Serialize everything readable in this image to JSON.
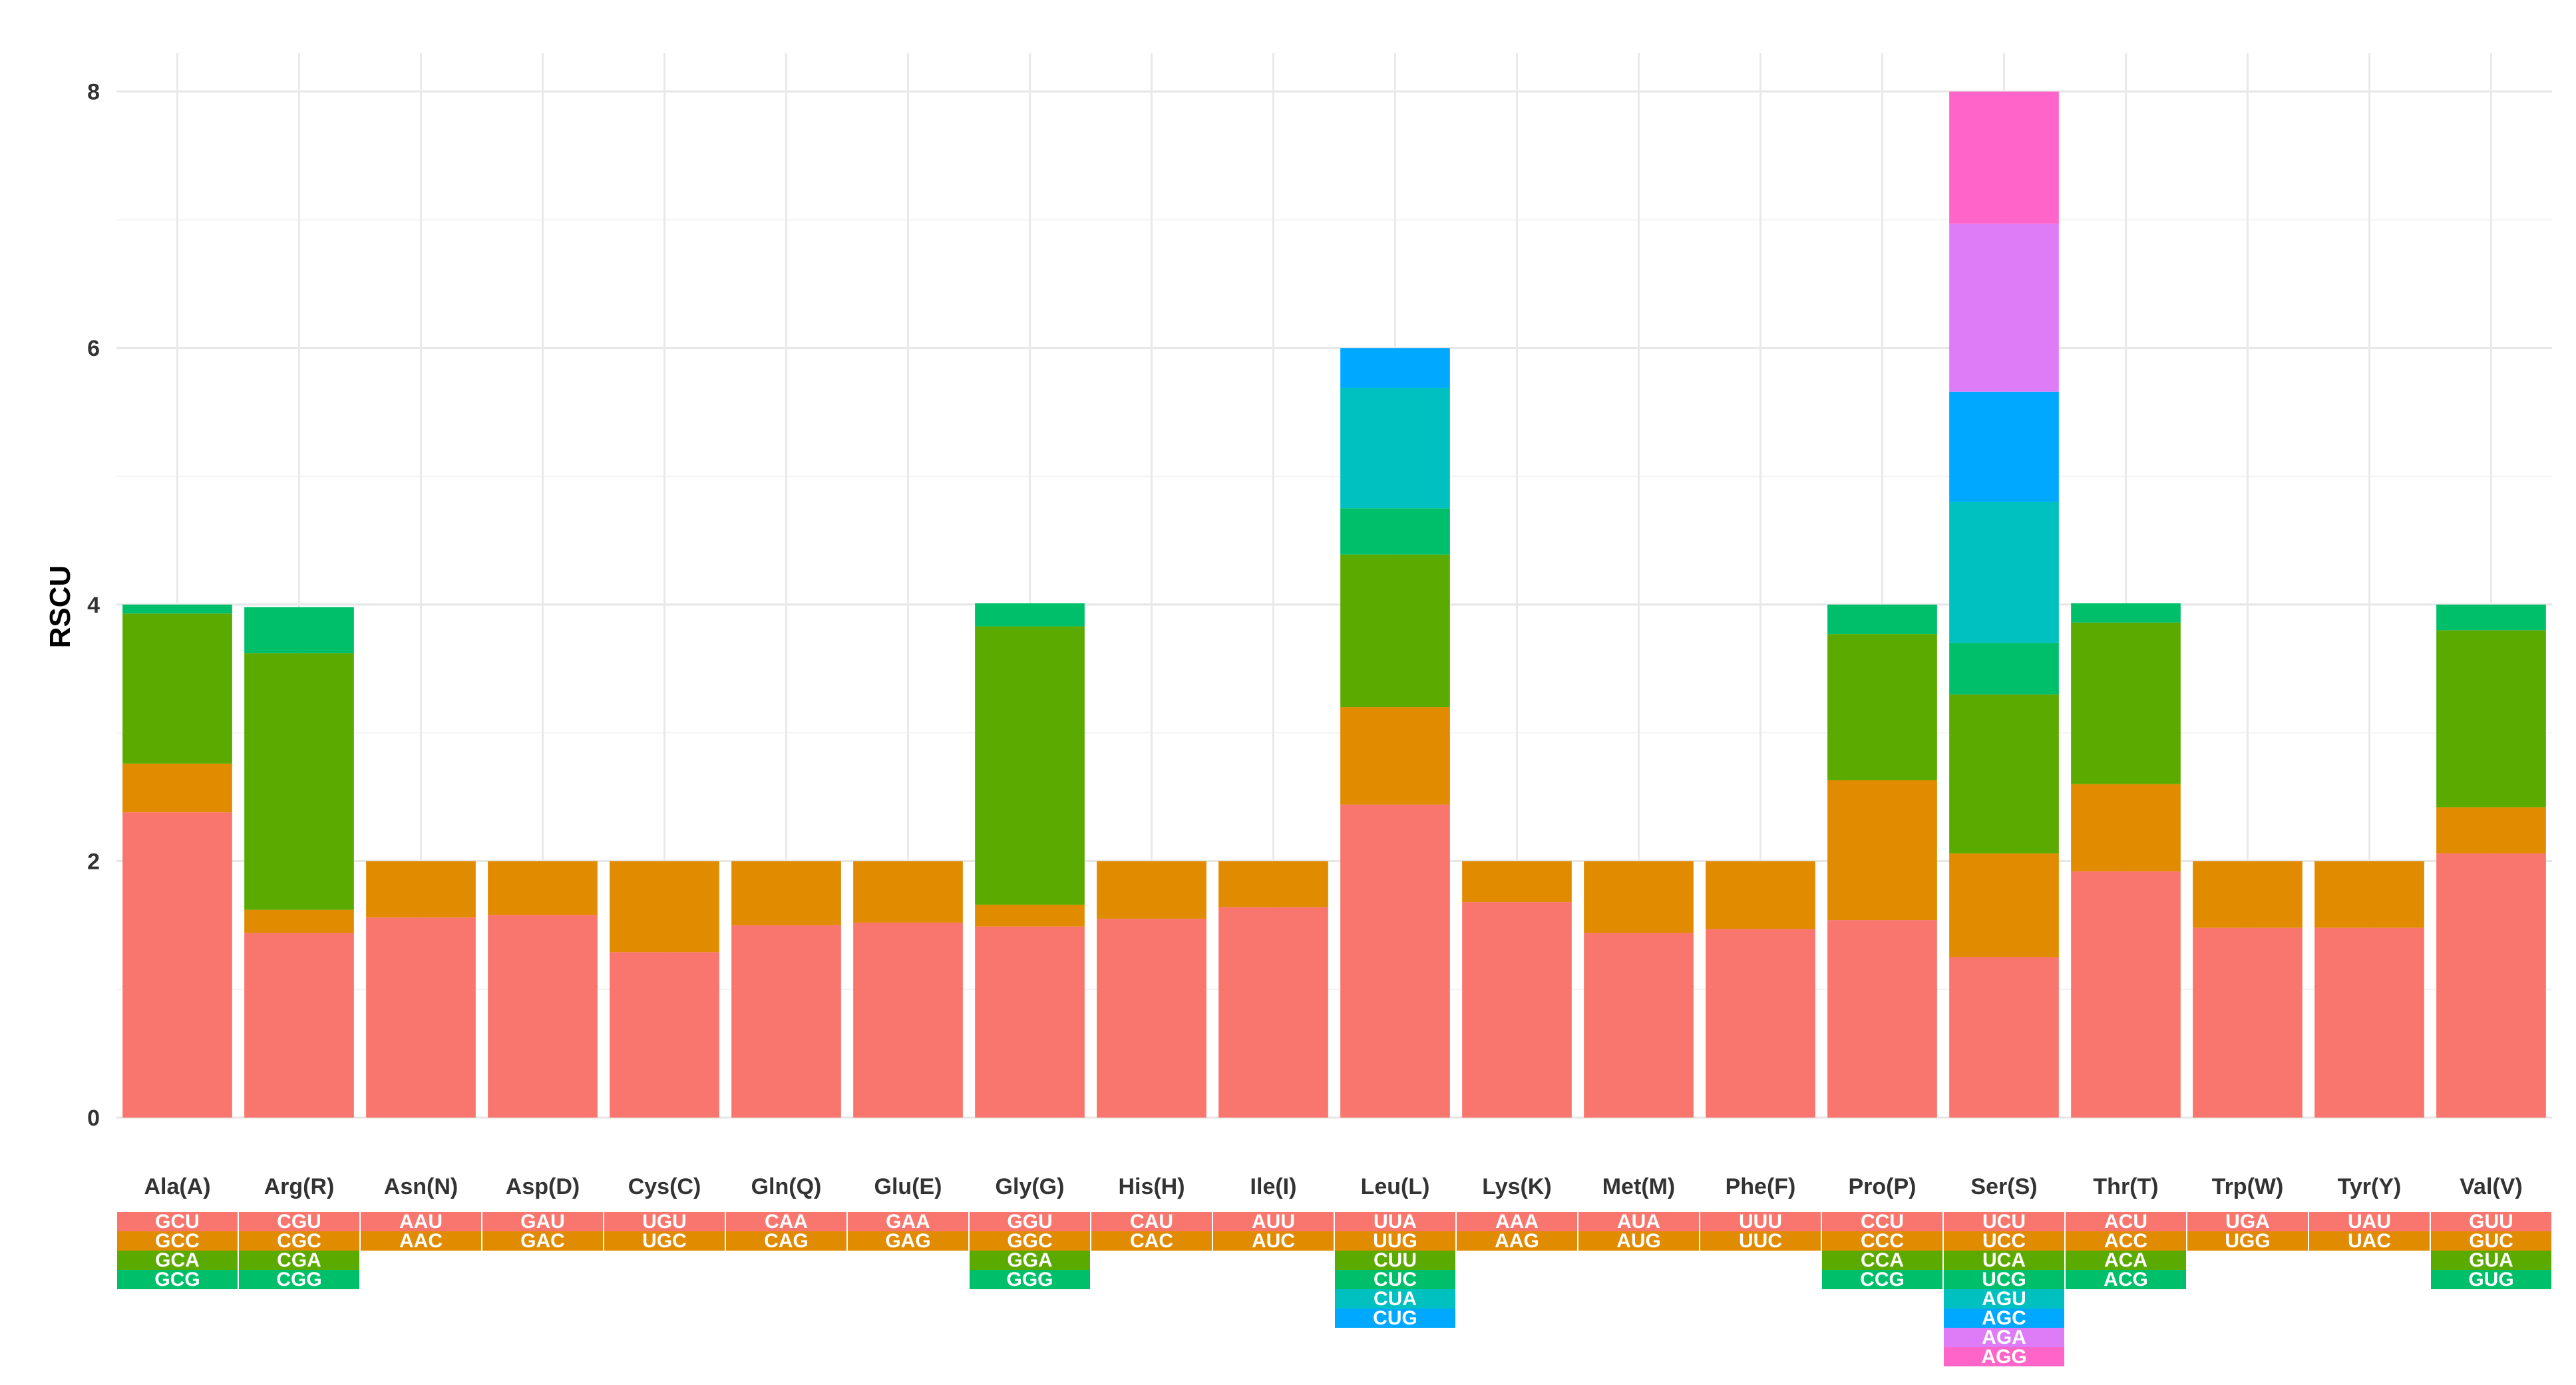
{
  "chart_data": {
    "type": "bar",
    "stacked": true,
    "ylabel": "RSCU",
    "ylim": [
      0,
      8.3
    ],
    "yticks": [
      0,
      2,
      4,
      6,
      8
    ],
    "grid": true,
    "legend": "none",
    "codon_colors": [
      "#F8766D",
      "#E08B00",
      "#5BAA00",
      "#00BF6A",
      "#00C0C0",
      "#00A9FF",
      "#DE7CF7",
      "#FF65C8"
    ],
    "categories": [
      "Ala(A)",
      "Arg(R)",
      "Asn(N)",
      "Asp(D)",
      "Cys(C)",
      "Gln(Q)",
      "Glu(E)",
      "Gly(G)",
      "His(H)",
      "Ile(I)",
      "Leu(L)",
      "Lys(K)",
      "Met(M)",
      "Phe(F)",
      "Pro(P)",
      "Ser(S)",
      "Thr(T)",
      "Trp(W)",
      "Tyr(Y)",
      "Val(V)"
    ],
    "bars": [
      {
        "codons": [
          "GCU",
          "GCC",
          "GCA",
          "GCG"
        ],
        "values": [
          2.38,
          0.38,
          1.17,
          0.07
        ]
      },
      {
        "codons": [
          "CGU",
          "CGC",
          "CGA",
          "CGG"
        ],
        "values": [
          1.44,
          0.18,
          2.0,
          0.36
        ]
      },
      {
        "codons": [
          "AAU",
          "AAC"
        ],
        "values": [
          1.56,
          0.44
        ]
      },
      {
        "codons": [
          "GAU",
          "GAC"
        ],
        "values": [
          1.58,
          0.42
        ]
      },
      {
        "codons": [
          "UGU",
          "UGC"
        ],
        "values": [
          1.29,
          0.71
        ]
      },
      {
        "codons": [
          "CAA",
          "CAG"
        ],
        "values": [
          1.5,
          0.5
        ]
      },
      {
        "codons": [
          "GAA",
          "GAG"
        ],
        "values": [
          1.52,
          0.48
        ]
      },
      {
        "codons": [
          "GGU",
          "GGC",
          "GGA",
          "GGG"
        ],
        "values": [
          1.49,
          0.17,
          2.17,
          0.18
        ]
      },
      {
        "codons": [
          "CAU",
          "CAC"
        ],
        "values": [
          1.55,
          0.45
        ]
      },
      {
        "codons": [
          "AUU",
          "AUC"
        ],
        "values": [
          1.64,
          0.36
        ]
      },
      {
        "codons": [
          "UUA",
          "UUG",
          "CUU",
          "CUC",
          "CUA",
          "CUG"
        ],
        "values": [
          2.44,
          0.76,
          1.19,
          0.36,
          0.94,
          0.31
        ]
      },
      {
        "codons": [
          "AAA",
          "AAG"
        ],
        "values": [
          1.68,
          0.32
        ]
      },
      {
        "codons": [
          "AUA",
          "AUG"
        ],
        "values": [
          1.44,
          0.56
        ]
      },
      {
        "codons": [
          "UUU",
          "UUC"
        ],
        "values": [
          1.47,
          0.53
        ]
      },
      {
        "codons": [
          "CCU",
          "CCC",
          "CCA",
          "CCG"
        ],
        "values": [
          1.54,
          1.09,
          1.14,
          0.23
        ]
      },
      {
        "codons": [
          "UCU",
          "UCC",
          "UCA",
          "UCG",
          "AGU",
          "AGC",
          "AGA",
          "AGG"
        ],
        "values": [
          1.25,
          0.81,
          1.24,
          0.4,
          1.1,
          0.86,
          1.31,
          1.03
        ]
      },
      {
        "codons": [
          "ACU",
          "ACC",
          "ACA",
          "ACG"
        ],
        "values": [
          1.92,
          0.68,
          1.26,
          0.15
        ]
      },
      {
        "codons": [
          "UGA",
          "UGG"
        ],
        "values": [
          1.48,
          0.52
        ]
      },
      {
        "codons": [
          "UAU",
          "UAC"
        ],
        "values": [
          1.48,
          0.52
        ]
      },
      {
        "codons": [
          "GUU",
          "GUC",
          "GUA",
          "GUG"
        ],
        "values": [
          2.06,
          0.36,
          1.38,
          0.2
        ]
      }
    ]
  }
}
